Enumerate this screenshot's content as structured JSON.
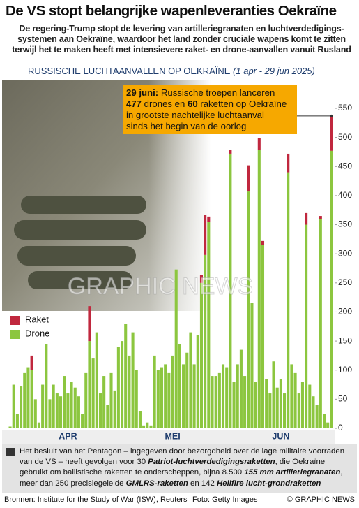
{
  "header": {
    "title": "De VS stopt belangrijke wapenleveranties Oekraïne",
    "subtitle": "De regering-Trump stopt de levering van artilleriegranaten en luchtverdedigings-systemen aan Oekraïne, waardoor het land zonder cruciale wapens komt te zitten terwijl het te maken heeft met intensievere raket- en drone-aanvallen vanuit Rusland"
  },
  "chart_data": {
    "type": "stacked_bar",
    "title": "RUSSISCHE LUCHTAANVALLEN OP OEKRAÏNE",
    "subtitle": "(1 apr - 29 jun 2025)",
    "categories": [
      null,
      null,
      null,
      null,
      null,
      null,
      null,
      null,
      null,
      null,
      null,
      null,
      null,
      null,
      null,
      null,
      "APR",
      null,
      null,
      null,
      null,
      null,
      null,
      null,
      null,
      null,
      null,
      null,
      null,
      null,
      null,
      null,
      null,
      null,
      null,
      null,
      null,
      null,
      null,
      null,
      null,
      null,
      null,
      null,
      null,
      "MEI",
      null,
      null,
      null,
      null,
      null,
      null,
      null,
      null,
      null,
      null,
      null,
      null,
      null,
      null,
      null,
      null,
      null,
      null,
      null,
      null,
      null,
      null,
      null,
      null,
      null,
      null,
      null,
      null,
      null,
      "JUN",
      null,
      null,
      null,
      null,
      null,
      null,
      null,
      null,
      null,
      null,
      null,
      null,
      null,
      null
    ],
    "series": [
      {
        "name": "Drone",
        "color": "#8cc63f",
        "values": [
          3,
          75,
          25,
          72,
          95,
          105,
          100,
          50,
          10,
          75,
          145,
          50,
          75,
          60,
          55,
          90,
          60,
          80,
          70,
          55,
          25,
          95,
          150,
          120,
          165,
          60,
          90,
          40,
          95,
          65,
          140,
          150,
          180,
          125,
          165,
          100,
          30,
          5,
          10,
          5,
          125,
          100,
          105,
          110,
          95,
          125,
          273,
          145,
          110,
          130,
          165,
          110,
          160,
          250,
          298,
          355,
          90,
          90,
          95,
          110,
          105,
          472,
          80,
          110,
          135,
          90,
          407,
          215,
          80,
          479,
          315,
          85,
          60,
          115,
          70,
          85,
          60,
          440,
          110,
          95,
          60,
          80,
          350,
          75,
          55,
          40,
          360,
          25,
          10,
          477
        ]
      },
      {
        "name": "Raket",
        "color": "#c0283e",
        "values": [
          0,
          0,
          0,
          0,
          0,
          0,
          25,
          0,
          0,
          0,
          0,
          0,
          0,
          0,
          0,
          0,
          0,
          0,
          0,
          0,
          0,
          0,
          60,
          0,
          0,
          0,
          0,
          0,
          0,
          0,
          0,
          0,
          0,
          0,
          0,
          0,
          0,
          0,
          0,
          0,
          0,
          0,
          0,
          0,
          0,
          0,
          0,
          0,
          0,
          0,
          0,
          0,
          0,
          14,
          69,
          9,
          0,
          0,
          0,
          0,
          0,
          7,
          0,
          0,
          0,
          0,
          45,
          0,
          0,
          20,
          7,
          0,
          0,
          0,
          0,
          0,
          0,
          32,
          0,
          0,
          0,
          0,
          20,
          0,
          0,
          0,
          5,
          0,
          0,
          60
        ]
      }
    ],
    "ylim": [
      0,
      550
    ],
    "yticks": [
      0,
      50,
      100,
      150,
      200,
      250,
      300,
      350,
      400,
      450,
      500,
      550
    ],
    "annotation": [
      "29 juni:",
      " Russische troepen lanceren",
      "477",
      " drones en ",
      "60",
      " raketten op Oekraïne",
      "in grootste nachtelijke luchtaanval",
      "sinds het begin van de oorlog"
    ],
    "watermark": "GRAPHIC NEWS"
  },
  "note": [
    "Het besluit van het Pentagon – ingegeven door bezorgdheid over de lage militaire voorraden van de VS – heeft gevolgen voor 30 ",
    "Patriot-luchtverdedigingsraketten",
    ", die Oekraïne gebruikt om ballistische raketten te onderscheppen, bijna 8.500 ",
    "155 mm artilleriegranaten",
    ", meer dan 250 precisiegeleide ",
    "GMLRS-raketten",
    " en 142 ",
    "Hellfire lucht-grondraketten"
  ],
  "footer": {
    "sources": "Bronnen: Institute for the Study of War (ISW), Reuters",
    "photo": "Foto: Getty Images",
    "brand": "© GRAPHIC NEWS"
  }
}
